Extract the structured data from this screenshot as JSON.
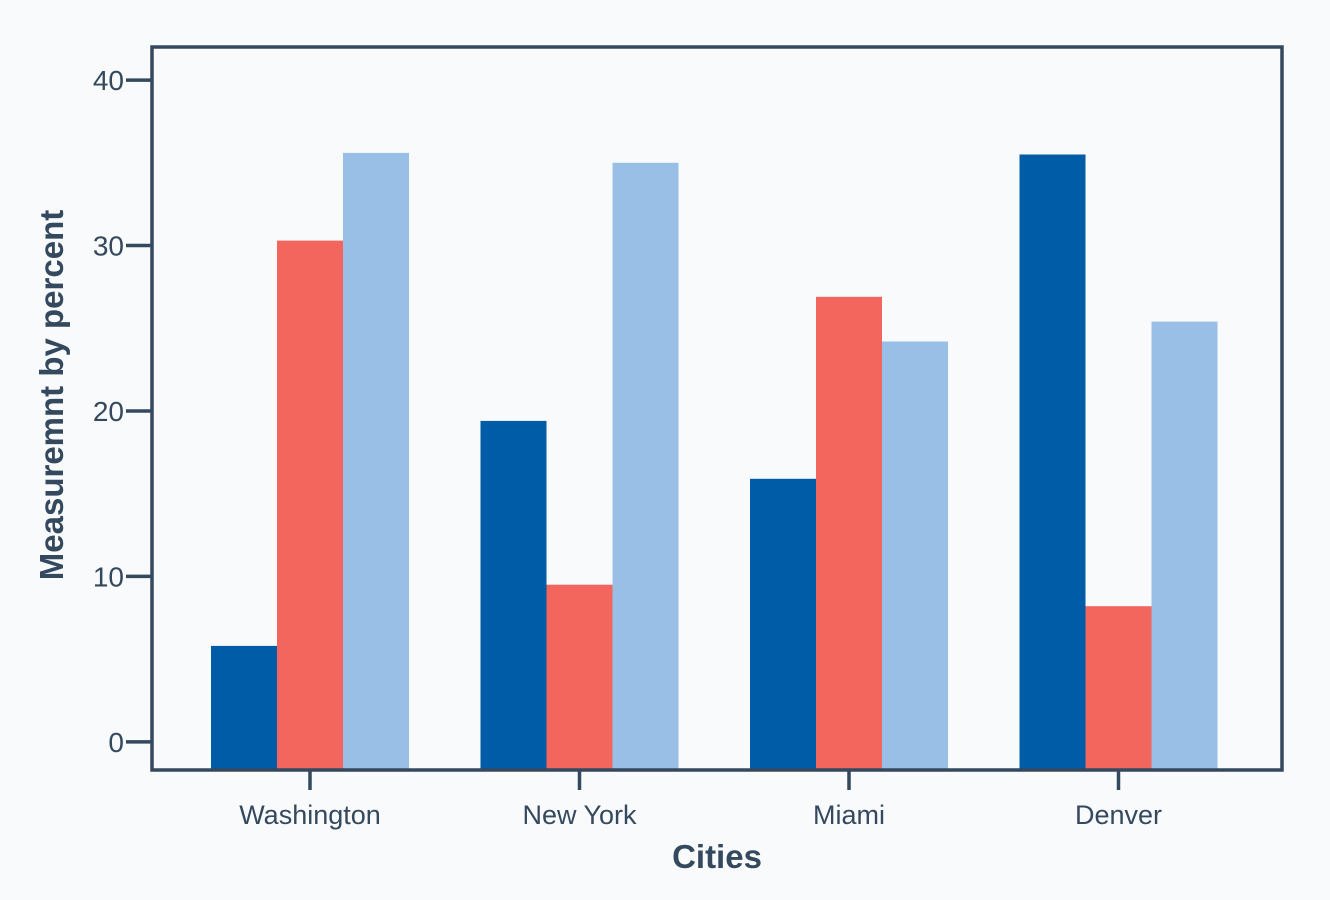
{
  "colors": {
    "background": "#f8fafb",
    "axis": "#34495e",
    "text": "#34495e"
  },
  "chart_data": {
    "type": "bar",
    "title": "",
    "xlabel": "Cities",
    "ylabel": "Measuremnt by percent",
    "categories": [
      "Washington",
      "New York",
      "Miami",
      "Denver"
    ],
    "ylim": [
      -1.7,
      42
    ],
    "yticks": [
      0,
      10,
      20,
      30,
      40
    ],
    "grid": false,
    "legend": "none",
    "series": [
      {
        "color": "#005ca7",
        "values": [
          5.8,
          19.4,
          15.9,
          35.5
        ]
      },
      {
        "color": "#f2665d",
        "values": [
          30.3,
          9.5,
          26.9,
          8.2
        ]
      },
      {
        "color": "#9abfe6",
        "values": [
          35.6,
          35.0,
          24.2,
          25.4
        ]
      }
    ]
  }
}
